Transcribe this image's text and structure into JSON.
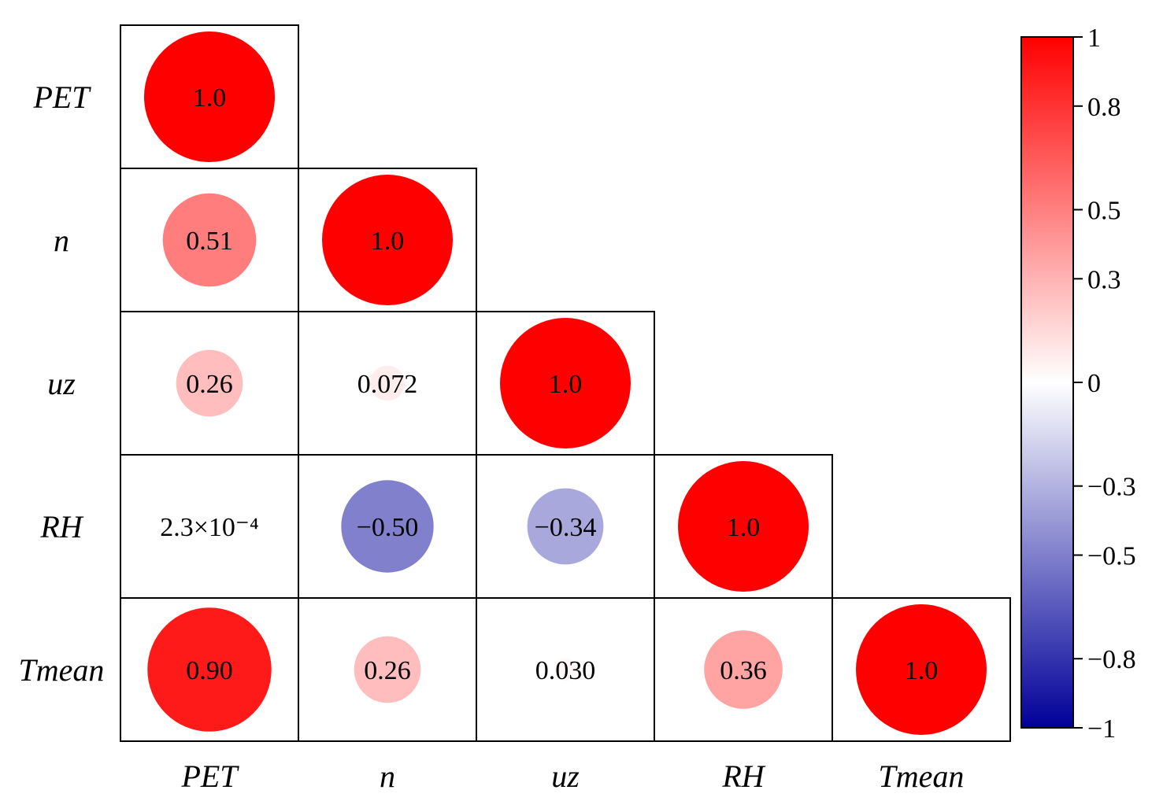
{
  "chart_data": {
    "type": "heatmap",
    "variables": [
      "PET",
      "n",
      "uz",
      "RH",
      "Tmean"
    ],
    "matrix": [
      [
        1.0,
        null,
        null,
        null,
        null
      ],
      [
        0.51,
        1.0,
        null,
        null,
        null
      ],
      [
        0.26,
        0.072,
        1.0,
        null,
        null
      ],
      [
        0.00023,
        -0.5,
        -0.34,
        1.0,
        null
      ],
      [
        0.9,
        0.26,
        0.03,
        0.36,
        1.0
      ]
    ],
    "cell_labels": [
      [
        "1.0",
        "",
        "",
        "",
        ""
      ],
      [
        "0.51",
        "1.0",
        "",
        "",
        ""
      ],
      [
        "0.26",
        "0.072",
        "1.0",
        "",
        ""
      ],
      [
        "2.3×10⁻⁴",
        "−0.50",
        "−0.34",
        "1.0",
        ""
      ],
      [
        "0.90",
        "0.26",
        "0.030",
        "0.36",
        "1.0"
      ]
    ],
    "triangle": "lower",
    "vrange": [
      -1,
      1
    ],
    "colorbar": {
      "ticks": [
        1,
        0.8,
        0.5,
        0.3,
        0,
        -0.3,
        -0.5,
        -0.8,
        -1
      ],
      "tick_labels": [
        "1",
        "0.8",
        "0.5",
        "0.3",
        "0",
        "−0.3",
        "−0.5",
        "−0.8",
        "−1"
      ],
      "colors": {
        "negative": "#000099",
        "zero": "#ffffff",
        "positive": "#ff0000"
      }
    }
  }
}
